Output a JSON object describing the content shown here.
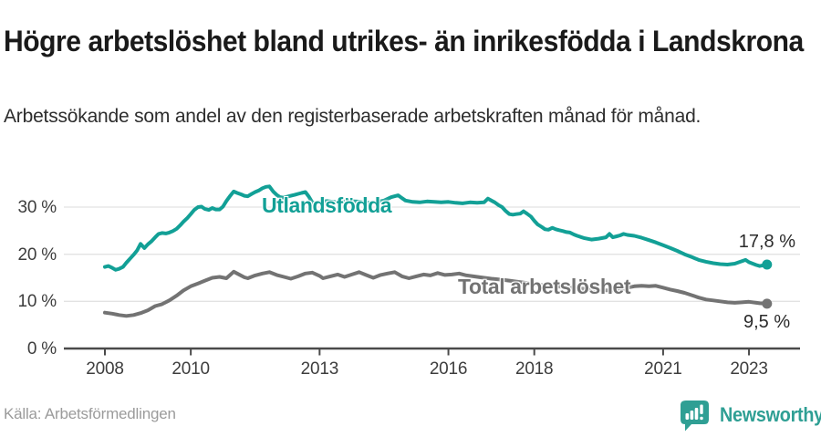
{
  "footer": {
    "logo_text": "Newsworthy"
  },
  "colors": {
    "series_foreign": "#12a096",
    "series_total": "#737373",
    "grid": "#e2e2e2",
    "axis": "#4a4a4a",
    "logo": "#2f9f94"
  },
  "chart_data": {
    "type": "line",
    "title": "Högre arbetslöshet bland utrikes- än inrikesfödda i Landskrona",
    "subtitle": "Arbetssökande som andel av den registerbaserade arbetskraften månad för månad.",
    "source": "Källa: Arbetsförmedlingen",
    "unit": "%",
    "grid": true,
    "legend_position": "inline-labels",
    "x_domain": [
      2007.05,
      2024.19
    ],
    "ylim": [
      0,
      36
    ],
    "yticks": [
      {
        "value": 0,
        "label": "0 %"
      },
      {
        "value": 10,
        "label": "10 %"
      },
      {
        "value": 20,
        "label": "20 %"
      },
      {
        "value": 30,
        "label": "30 %"
      }
    ],
    "xticks": [
      {
        "value": 2008,
        "label": "2008"
      },
      {
        "value": 2010,
        "label": "2010"
      },
      {
        "value": 2013,
        "label": "2013"
      },
      {
        "value": 2016,
        "label": "2016"
      },
      {
        "value": 2018,
        "label": "2018"
      },
      {
        "value": 2021,
        "label": "2021"
      },
      {
        "value": 2023,
        "label": "2023"
      }
    ],
    "series": [
      {
        "name": "Utlandsfödda",
        "color": "#12a096",
        "end_label": "17,8 %",
        "end_value": 17.8,
        "points": [
          [
            2008.0,
            17.3
          ],
          [
            2008.08,
            17.5
          ],
          [
            2008.17,
            17.1
          ],
          [
            2008.25,
            16.7
          ],
          [
            2008.33,
            16.9
          ],
          [
            2008.42,
            17.3
          ],
          [
            2008.5,
            18.2
          ],
          [
            2008.58,
            19.0
          ],
          [
            2008.67,
            19.9
          ],
          [
            2008.75,
            20.8
          ],
          [
            2008.83,
            22.2
          ],
          [
            2008.92,
            21.3
          ],
          [
            2009.0,
            22.1
          ],
          [
            2009.08,
            22.7
          ],
          [
            2009.17,
            23.6
          ],
          [
            2009.25,
            24.3
          ],
          [
            2009.33,
            24.5
          ],
          [
            2009.42,
            24.4
          ],
          [
            2009.5,
            24.6
          ],
          [
            2009.58,
            24.9
          ],
          [
            2009.67,
            25.4
          ],
          [
            2009.75,
            26.1
          ],
          [
            2009.83,
            26.9
          ],
          [
            2009.92,
            27.7
          ],
          [
            2010.0,
            28.5
          ],
          [
            2010.08,
            29.4
          ],
          [
            2010.17,
            30.0
          ],
          [
            2010.25,
            30.1
          ],
          [
            2010.33,
            29.6
          ],
          [
            2010.42,
            29.4
          ],
          [
            2010.5,
            29.8
          ],
          [
            2010.58,
            29.5
          ],
          [
            2010.67,
            29.5
          ],
          [
            2010.75,
            30.1
          ],
          [
            2010.83,
            31.3
          ],
          [
            2010.92,
            32.4
          ],
          [
            2011.0,
            33.3
          ],
          [
            2011.08,
            33.0
          ],
          [
            2011.17,
            32.7
          ],
          [
            2011.25,
            32.4
          ],
          [
            2011.33,
            32.3
          ],
          [
            2011.42,
            32.8
          ],
          [
            2011.5,
            33.2
          ],
          [
            2011.58,
            33.5
          ],
          [
            2011.67,
            34.0
          ],
          [
            2011.75,
            34.3
          ],
          [
            2011.83,
            34.4
          ],
          [
            2011.92,
            33.3
          ],
          [
            2012.0,
            32.6
          ],
          [
            2012.08,
            32.1
          ],
          [
            2012.17,
            32.0
          ],
          [
            2012.25,
            32.2
          ],
          [
            2012.33,
            32.4
          ],
          [
            2012.42,
            32.6
          ],
          [
            2012.5,
            32.8
          ],
          [
            2012.58,
            33.0
          ],
          [
            2012.67,
            33.2
          ],
          [
            2012.75,
            32.2
          ],
          [
            2012.83,
            31.0
          ],
          [
            2012.92,
            30.9
          ],
          [
            2013.0,
            31.1
          ],
          [
            2013.17,
            31.3
          ],
          [
            2013.33,
            31.1
          ],
          [
            2013.5,
            31.0
          ],
          [
            2013.67,
            31.4
          ],
          [
            2013.83,
            31.2
          ],
          [
            2014.0,
            31.1
          ],
          [
            2014.17,
            30.9
          ],
          [
            2014.33,
            31.1
          ],
          [
            2014.5,
            31.4
          ],
          [
            2014.67,
            32.1
          ],
          [
            2014.83,
            32.5
          ],
          [
            2014.92,
            31.9
          ],
          [
            2015.0,
            31.4
          ],
          [
            2015.17,
            31.1
          ],
          [
            2015.33,
            31.0
          ],
          [
            2015.5,
            31.2
          ],
          [
            2015.67,
            31.1
          ],
          [
            2015.83,
            31.0
          ],
          [
            2016.0,
            31.1
          ],
          [
            2016.17,
            30.9
          ],
          [
            2016.33,
            30.8
          ],
          [
            2016.5,
            31.0
          ],
          [
            2016.67,
            30.9
          ],
          [
            2016.83,
            31.0
          ],
          [
            2016.92,
            31.8
          ],
          [
            2017.0,
            31.4
          ],
          [
            2017.08,
            31.0
          ],
          [
            2017.17,
            30.4
          ],
          [
            2017.25,
            30.0
          ],
          [
            2017.33,
            29.2
          ],
          [
            2017.42,
            28.5
          ],
          [
            2017.5,
            28.4
          ],
          [
            2017.58,
            28.5
          ],
          [
            2017.67,
            28.6
          ],
          [
            2017.75,
            29.1
          ],
          [
            2017.83,
            28.6
          ],
          [
            2017.92,
            28.0
          ],
          [
            2018.0,
            27.1
          ],
          [
            2018.08,
            26.3
          ],
          [
            2018.17,
            25.8
          ],
          [
            2018.25,
            25.3
          ],
          [
            2018.33,
            25.2
          ],
          [
            2018.42,
            25.6
          ],
          [
            2018.5,
            25.3
          ],
          [
            2018.58,
            25.1
          ],
          [
            2018.67,
            24.9
          ],
          [
            2018.75,
            24.7
          ],
          [
            2018.83,
            24.6
          ],
          [
            2018.92,
            24.2
          ],
          [
            2019.0,
            23.9
          ],
          [
            2019.17,
            23.4
          ],
          [
            2019.33,
            23.1
          ],
          [
            2019.5,
            23.3
          ],
          [
            2019.67,
            23.6
          ],
          [
            2019.75,
            24.3
          ],
          [
            2019.83,
            23.6
          ],
          [
            2019.92,
            23.8
          ],
          [
            2020.0,
            24.0
          ],
          [
            2020.08,
            24.3
          ],
          [
            2020.17,
            24.1
          ],
          [
            2020.33,
            23.9
          ],
          [
            2020.5,
            23.5
          ],
          [
            2020.67,
            23.0
          ],
          [
            2020.83,
            22.5
          ],
          [
            2021.0,
            21.9
          ],
          [
            2021.17,
            21.3
          ],
          [
            2021.33,
            20.7
          ],
          [
            2021.5,
            20.0
          ],
          [
            2021.67,
            19.4
          ],
          [
            2021.83,
            18.8
          ],
          [
            2022.0,
            18.4
          ],
          [
            2022.17,
            18.1
          ],
          [
            2022.33,
            17.9
          ],
          [
            2022.5,
            17.8
          ],
          [
            2022.67,
            18.0
          ],
          [
            2022.83,
            18.5
          ],
          [
            2022.92,
            18.8
          ],
          [
            2023.0,
            18.3
          ],
          [
            2023.17,
            17.7
          ],
          [
            2023.25,
            17.5
          ],
          [
            2023.42,
            17.8
          ]
        ]
      },
      {
        "name": "Total arbetslöshet",
        "color": "#737373",
        "end_label": "9,5 %",
        "end_value": 9.5,
        "points": [
          [
            2008.0,
            7.6
          ],
          [
            2008.17,
            7.4
          ],
          [
            2008.33,
            7.1
          ],
          [
            2008.5,
            6.9
          ],
          [
            2008.67,
            7.1
          ],
          [
            2008.83,
            7.5
          ],
          [
            2009.0,
            8.1
          ],
          [
            2009.17,
            9.0
          ],
          [
            2009.33,
            9.4
          ],
          [
            2009.5,
            10.2
          ],
          [
            2009.67,
            11.2
          ],
          [
            2009.83,
            12.3
          ],
          [
            2010.0,
            13.2
          ],
          [
            2010.17,
            13.8
          ],
          [
            2010.33,
            14.4
          ],
          [
            2010.5,
            15.0
          ],
          [
            2010.67,
            15.2
          ],
          [
            2010.83,
            14.9
          ],
          [
            2011.0,
            16.3
          ],
          [
            2011.08,
            15.9
          ],
          [
            2011.25,
            15.1
          ],
          [
            2011.33,
            14.9
          ],
          [
            2011.5,
            15.5
          ],
          [
            2011.67,
            15.9
          ],
          [
            2011.83,
            16.2
          ],
          [
            2012.0,
            15.6
          ],
          [
            2012.17,
            15.2
          ],
          [
            2012.33,
            14.8
          ],
          [
            2012.5,
            15.3
          ],
          [
            2012.67,
            15.9
          ],
          [
            2012.83,
            16.1
          ],
          [
            2013.0,
            15.4
          ],
          [
            2013.08,
            14.9
          ],
          [
            2013.25,
            15.3
          ],
          [
            2013.42,
            15.7
          ],
          [
            2013.58,
            15.2
          ],
          [
            2013.75,
            15.7
          ],
          [
            2013.92,
            16.2
          ],
          [
            2014.08,
            15.6
          ],
          [
            2014.25,
            15.0
          ],
          [
            2014.42,
            15.6
          ],
          [
            2014.58,
            15.9
          ],
          [
            2014.75,
            16.2
          ],
          [
            2014.92,
            15.3
          ],
          [
            2015.08,
            14.9
          ],
          [
            2015.25,
            15.3
          ],
          [
            2015.42,
            15.7
          ],
          [
            2015.58,
            15.5
          ],
          [
            2015.75,
            16.0
          ],
          [
            2015.92,
            15.6
          ],
          [
            2016.08,
            15.7
          ],
          [
            2016.25,
            15.9
          ],
          [
            2016.42,
            15.5
          ],
          [
            2016.58,
            15.3
          ],
          [
            2016.75,
            15.1
          ],
          [
            2017.0,
            14.8
          ],
          [
            2017.25,
            14.6
          ],
          [
            2017.5,
            14.3
          ],
          [
            2017.75,
            14.0
          ],
          [
            2018.0,
            13.7
          ],
          [
            2018.25,
            13.4
          ],
          [
            2018.5,
            13.2
          ],
          [
            2018.75,
            13.0
          ],
          [
            2019.0,
            12.8
          ],
          [
            2019.25,
            12.6
          ],
          [
            2019.5,
            12.4
          ],
          [
            2019.75,
            12.3
          ],
          [
            2020.0,
            12.4
          ],
          [
            2020.17,
            12.9
          ],
          [
            2020.33,
            13.2
          ],
          [
            2020.5,
            13.3
          ],
          [
            2020.67,
            13.2
          ],
          [
            2020.83,
            13.3
          ],
          [
            2021.0,
            12.9
          ],
          [
            2021.17,
            12.5
          ],
          [
            2021.33,
            12.2
          ],
          [
            2021.5,
            11.8
          ],
          [
            2021.67,
            11.3
          ],
          [
            2021.83,
            10.8
          ],
          [
            2022.0,
            10.4
          ],
          [
            2022.17,
            10.2
          ],
          [
            2022.33,
            10.0
          ],
          [
            2022.5,
            9.8
          ],
          [
            2022.67,
            9.7
          ],
          [
            2022.83,
            9.8
          ],
          [
            2023.0,
            9.9
          ],
          [
            2023.17,
            9.7
          ],
          [
            2023.25,
            9.6
          ],
          [
            2023.42,
            9.5
          ]
        ]
      }
    ]
  }
}
